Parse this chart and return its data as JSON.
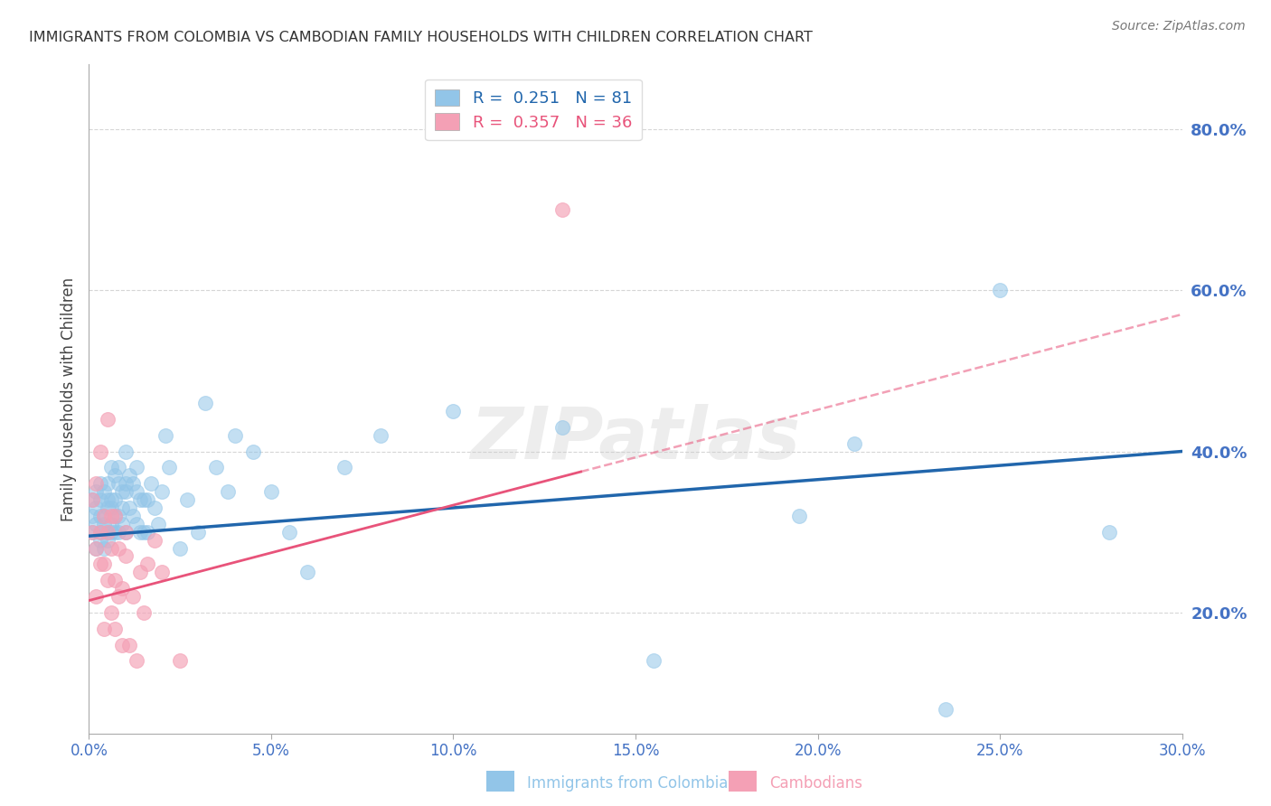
{
  "title": "IMMIGRANTS FROM COLOMBIA VS CAMBODIAN FAMILY HOUSEHOLDS WITH CHILDREN CORRELATION CHART",
  "source": "Source: ZipAtlas.com",
  "ylabel": "Family Households with Children",
  "xlim": [
    0.0,
    0.3
  ],
  "ylim": [
    0.05,
    0.88
  ],
  "xtick_labels": [
    "0.0%",
    "5.0%",
    "10.0%",
    "15.0%",
    "20.0%",
    "25.0%",
    "30.0%"
  ],
  "xtick_vals": [
    0.0,
    0.05,
    0.1,
    0.15,
    0.2,
    0.25,
    0.3
  ],
  "ytick_labels": [
    "20.0%",
    "40.0%",
    "60.0%",
    "80.0%"
  ],
  "ytick_vals": [
    0.2,
    0.4,
    0.6,
    0.8
  ],
  "legend_line1": "R =  0.251   N = 81",
  "legend_line2": "R =  0.357   N = 36",
  "series1_label": "Immigrants from Colombia",
  "series2_label": "Cambodians",
  "series1_color": "#92C5E8",
  "series2_color": "#F4A0B5",
  "trend1_color": "#2166AC",
  "trend2_color": "#E8537A",
  "legend_text1_color": "#2166AC",
  "legend_text2_color": "#E8537A",
  "ytick_color": "#4472C4",
  "xtick_color": "#4472C4",
  "grid_color": "#CCCCCC",
  "watermark": "ZIPatlas",
  "trend1_x0": 0.0,
  "trend1_y0": 0.295,
  "trend1_x1": 0.3,
  "trend1_y1": 0.4,
  "trend2_x0": 0.0,
  "trend2_y0": 0.215,
  "trend2_x1": 0.3,
  "trend2_y1": 0.57,
  "trend2_solid_xmax": 0.135,
  "colombia_x": [
    0.001,
    0.001,
    0.001,
    0.002,
    0.002,
    0.002,
    0.002,
    0.003,
    0.003,
    0.003,
    0.003,
    0.003,
    0.004,
    0.004,
    0.004,
    0.004,
    0.005,
    0.005,
    0.005,
    0.005,
    0.005,
    0.006,
    0.006,
    0.006,
    0.006,
    0.006,
    0.007,
    0.007,
    0.007,
    0.007,
    0.008,
    0.008,
    0.008,
    0.008,
    0.009,
    0.009,
    0.009,
    0.01,
    0.01,
    0.01,
    0.01,
    0.011,
    0.011,
    0.012,
    0.012,
    0.013,
    0.013,
    0.013,
    0.014,
    0.014,
    0.015,
    0.015,
    0.016,
    0.016,
    0.017,
    0.018,
    0.019,
    0.02,
    0.021,
    0.022,
    0.025,
    0.027,
    0.03,
    0.032,
    0.035,
    0.038,
    0.04,
    0.045,
    0.05,
    0.055,
    0.06,
    0.07,
    0.08,
    0.1,
    0.13,
    0.155,
    0.195,
    0.21,
    0.235,
    0.25,
    0.28
  ],
  "colombia_y": [
    0.3,
    0.32,
    0.34,
    0.28,
    0.31,
    0.33,
    0.35,
    0.29,
    0.32,
    0.34,
    0.3,
    0.36,
    0.28,
    0.32,
    0.35,
    0.31,
    0.3,
    0.33,
    0.36,
    0.29,
    0.34,
    0.31,
    0.34,
    0.38,
    0.3,
    0.33,
    0.3,
    0.34,
    0.37,
    0.32,
    0.32,
    0.36,
    0.3,
    0.38,
    0.31,
    0.35,
    0.33,
    0.35,
    0.4,
    0.3,
    0.36,
    0.33,
    0.37,
    0.32,
    0.36,
    0.31,
    0.35,
    0.38,
    0.3,
    0.34,
    0.3,
    0.34,
    0.3,
    0.34,
    0.36,
    0.33,
    0.31,
    0.35,
    0.42,
    0.38,
    0.28,
    0.34,
    0.3,
    0.46,
    0.38,
    0.35,
    0.42,
    0.4,
    0.35,
    0.3,
    0.25,
    0.38,
    0.42,
    0.45,
    0.43,
    0.14,
    0.32,
    0.41,
    0.08,
    0.6,
    0.3
  ],
  "cambodian_x": [
    0.001,
    0.001,
    0.002,
    0.002,
    0.002,
    0.003,
    0.003,
    0.003,
    0.004,
    0.004,
    0.004,
    0.005,
    0.005,
    0.005,
    0.006,
    0.006,
    0.006,
    0.007,
    0.007,
    0.007,
    0.008,
    0.008,
    0.009,
    0.009,
    0.01,
    0.01,
    0.011,
    0.012,
    0.013,
    0.014,
    0.015,
    0.016,
    0.018,
    0.02,
    0.025,
    0.13
  ],
  "cambodian_y": [
    0.3,
    0.34,
    0.28,
    0.36,
    0.22,
    0.26,
    0.3,
    0.4,
    0.26,
    0.32,
    0.18,
    0.24,
    0.3,
    0.44,
    0.2,
    0.28,
    0.32,
    0.18,
    0.32,
    0.24,
    0.22,
    0.28,
    0.16,
    0.23,
    0.27,
    0.3,
    0.16,
    0.22,
    0.14,
    0.25,
    0.2,
    0.26,
    0.29,
    0.25,
    0.14,
    0.7
  ]
}
